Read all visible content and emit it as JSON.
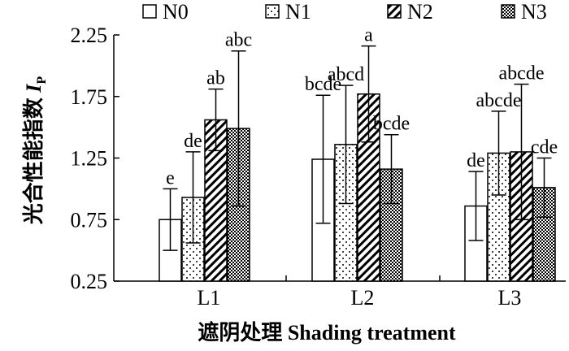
{
  "chart_data": {
    "type": "bar",
    "title": "",
    "xlabel": "遮阴处理 Shading treatment",
    "ylabel_main": "光合性能指数 ",
    "ylabel_italic": "I",
    "ylabel_sub": "P",
    "ylim": [
      0.25,
      2.25
    ],
    "yticks": [
      0.25,
      0.75,
      1.25,
      1.75,
      2.25
    ],
    "ytick_labels": [
      "0.25",
      "0.75",
      "1.25",
      "1.75",
      "2.25"
    ],
    "categories": [
      "L1",
      "L2",
      "L3"
    ],
    "legend_position": "top",
    "grid": false,
    "series": [
      {
        "name": "N0",
        "pattern": "open",
        "values": [
          0.75,
          1.24,
          0.86
        ],
        "errors": [
          0.25,
          0.52,
          0.28
        ],
        "letters": [
          "e",
          "bcde",
          "de"
        ]
      },
      {
        "name": "N1",
        "pattern": "dots",
        "values": [
          0.93,
          1.36,
          1.29
        ],
        "errors": [
          0.37,
          0.48,
          0.34
        ],
        "letters": [
          "de",
          "abcd",
          "abcde"
        ]
      },
      {
        "name": "N2",
        "pattern": "hatch",
        "values": [
          1.56,
          1.77,
          1.3
        ],
        "errors": [
          0.25,
          0.39,
          0.55
        ],
        "letters": [
          "ab",
          "a",
          "abcde"
        ]
      },
      {
        "name": "N3",
        "pattern": "checker",
        "values": [
          1.49,
          1.16,
          1.01
        ],
        "errors": [
          0.63,
          0.28,
          0.24
        ],
        "letters": [
          "abc",
          "bcde",
          "cde"
        ]
      }
    ]
  }
}
